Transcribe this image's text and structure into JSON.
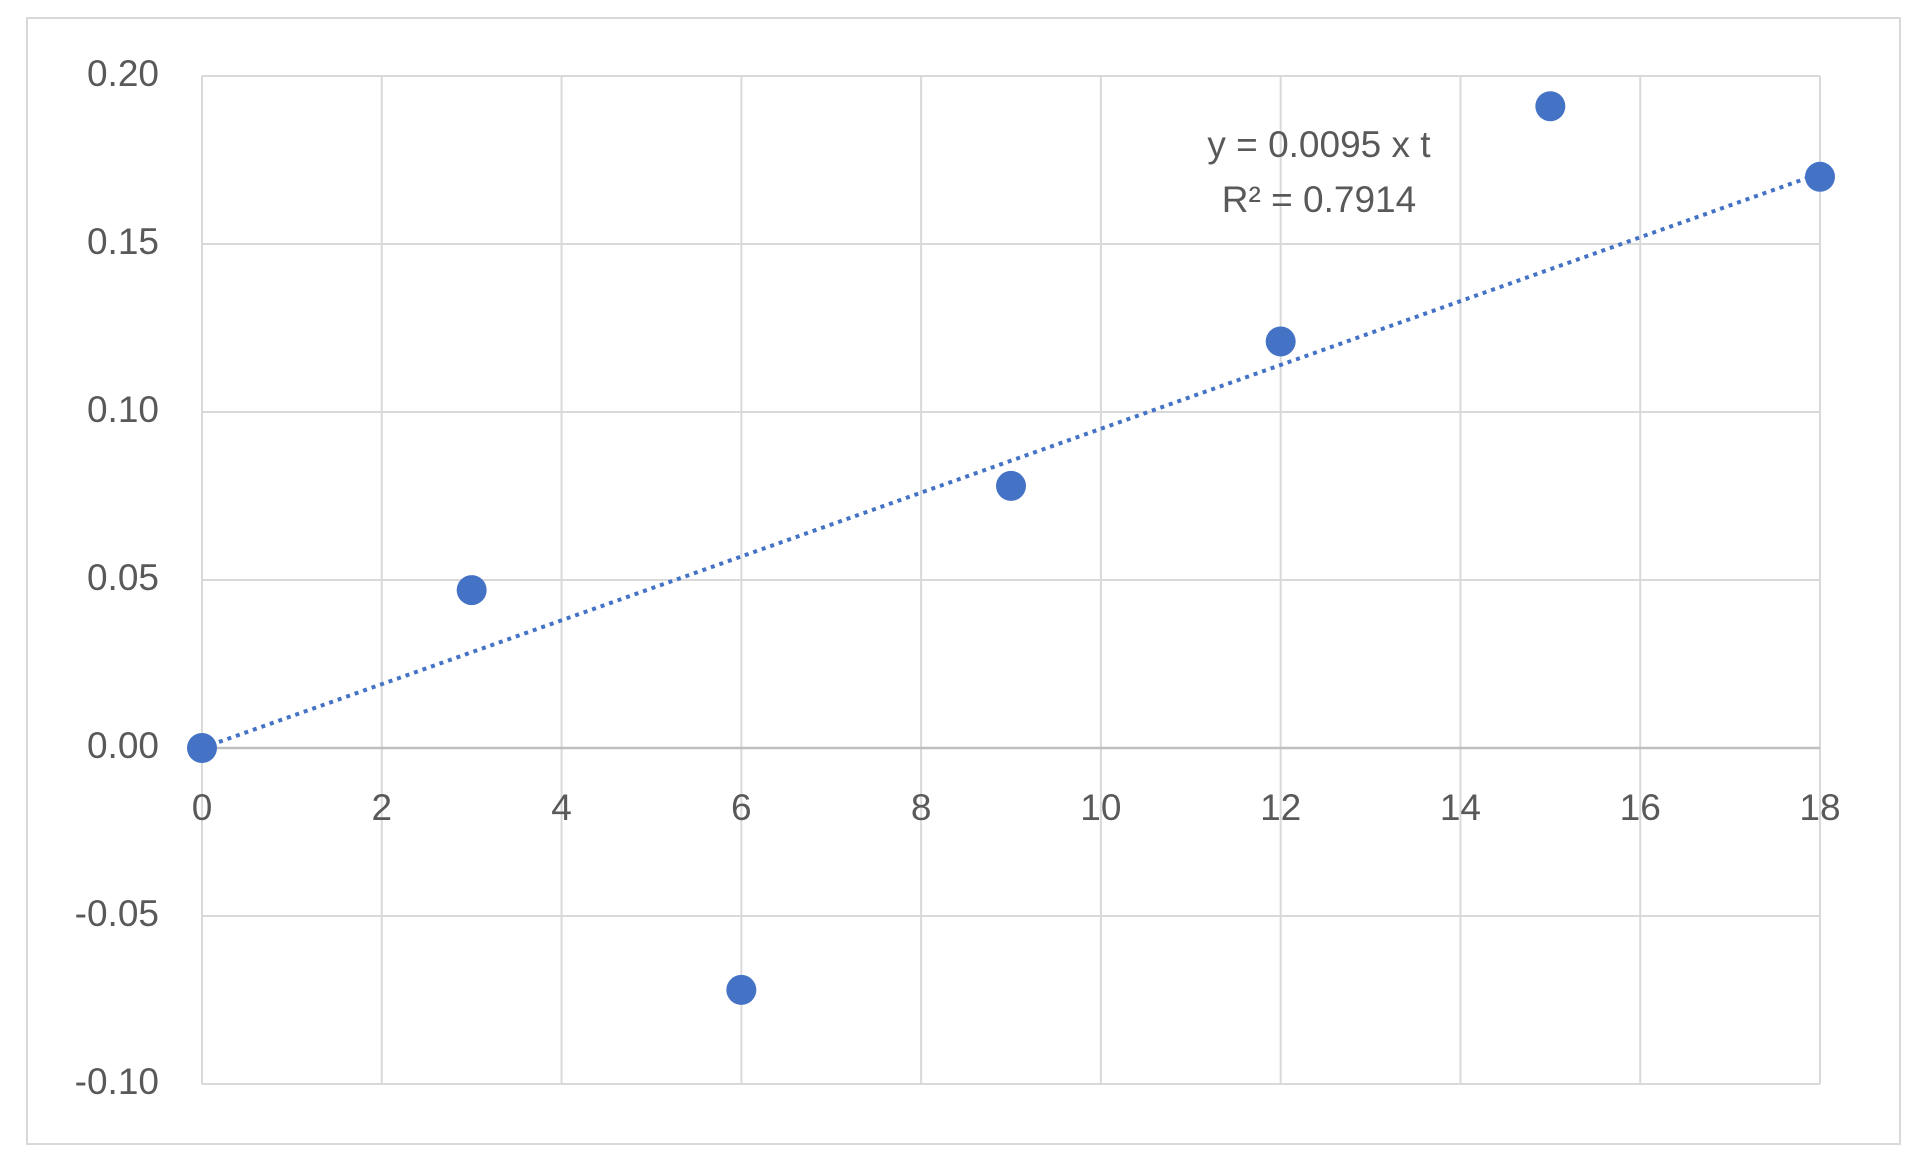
{
  "chart_data": {
    "type": "scatter",
    "series": [
      {
        "color": "#4472c4",
        "x": [
          0,
          3,
          6,
          9,
          12,
          15,
          18
        ],
        "values": [
          0,
          0.047,
          -0.072,
          0.078,
          0.121,
          0.191,
          0.17
        ]
      }
    ],
    "xlim": [
      0,
      18
    ],
    "xticks": [
      0,
      2,
      4,
      6,
      8,
      10,
      12,
      14,
      16,
      18
    ],
    "ylim": [
      -0.1,
      0.2
    ],
    "yticks": [
      {
        "value": -0.1,
        "label": "-0.10"
      },
      {
        "value": -0.05,
        "label": "-0.05"
      },
      {
        "value": 0,
        "label": "0.00"
      },
      {
        "value": 0.05,
        "label": "0.05"
      },
      {
        "value": 0.1,
        "label": "0.10"
      },
      {
        "value": 0.15,
        "label": "0.15"
      },
      {
        "value": 0.2,
        "label": "0.20"
      }
    ],
    "grid": true,
    "trendline": {
      "slope": 0.0095,
      "style": "dotted",
      "color": "#4472c4",
      "equation": "y = 0.0095 x t",
      "r_squared": "R² = 0.7914"
    }
  }
}
